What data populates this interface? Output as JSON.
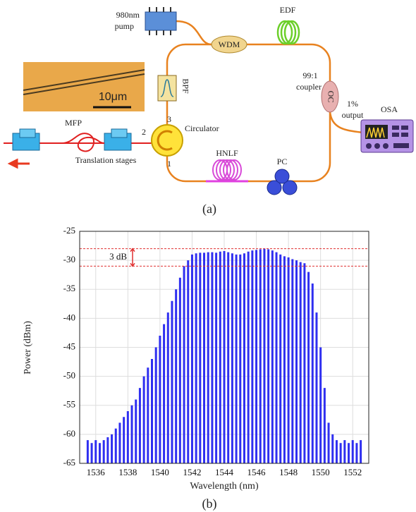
{
  "diagram": {
    "pump_label_1": "980nm",
    "pump_label_2": "pump",
    "wdm": "WDM",
    "edf": "EDF",
    "coupler_ratio": "99:1",
    "coupler_label": "coupler",
    "oc": "OC",
    "output_percent": "1%",
    "output_label": "output",
    "osa": "OSA",
    "bpf": "BPF",
    "port_3": "3",
    "circulator": "Circulator",
    "port_2": "2",
    "port_1": "1",
    "mfp": "MFP",
    "stages": "Translation stages",
    "hnlf": "HNLF",
    "pc": "PC",
    "scale_bar": "10μm",
    "panel_a": "(a)",
    "panel_b": "(b)"
  },
  "chart_data": {
    "type": "comb",
    "x_label": "Wavelength (nm)",
    "y_label": "Power (dBm)",
    "xlim": [
      1535,
      1553
    ],
    "xticks": [
      1536,
      1538,
      1540,
      1542,
      1544,
      1546,
      1548,
      1550,
      1552
    ],
    "ylim": [
      -65,
      -25
    ],
    "yticks": [
      -25,
      -30,
      -35,
      -40,
      -45,
      -50,
      -55,
      -60,
      -65
    ],
    "grid": true,
    "series": [
      {
        "color": "#2f2ff0",
        "x": [
          1535.5,
          1535.75,
          1536,
          1536.25,
          1536.5,
          1536.75,
          1537,
          1537.25,
          1537.5,
          1537.75,
          1538,
          1538.25,
          1538.5,
          1538.75,
          1539,
          1539.25,
          1539.5,
          1539.75,
          1540,
          1540.25,
          1540.5,
          1540.75,
          1541,
          1541.25,
          1541.5,
          1541.75,
          1542,
          1542.25,
          1542.5,
          1542.75,
          1543,
          1543.25,
          1543.5,
          1543.75,
          1544,
          1544.25,
          1544.5,
          1544.75,
          1545,
          1545.25,
          1545.5,
          1545.75,
          1546,
          1546.25,
          1546.5,
          1546.75,
          1547,
          1547.25,
          1547.5,
          1547.75,
          1548,
          1548.25,
          1548.5,
          1548.75,
          1549,
          1549.25,
          1549.5,
          1549.75,
          1550,
          1550.25,
          1550.5,
          1550.75,
          1551,
          1551.25,
          1551.5,
          1551.75,
          1552,
          1552.25,
          1552.5
        ],
        "values": [
          -61,
          -61.5,
          -61,
          -61.5,
          -61,
          -60.5,
          -60,
          -59,
          -58,
          -57,
          -56,
          -55,
          -54,
          -52,
          -50,
          -48.5,
          -47,
          -45,
          -43,
          -41,
          -39,
          -37,
          -35,
          -33,
          -31,
          -30,
          -29,
          -28.8,
          -28.7,
          -28.7,
          -28.6,
          -28.6,
          -28.7,
          -28.5,
          -28.4,
          -28.6,
          -28.8,
          -29,
          -29,
          -28.8,
          -28.5,
          -28.3,
          -28.2,
          -28.1,
          -28,
          -28.1,
          -28.3,
          -28.6,
          -29,
          -29.3,
          -29.5,
          -29.8,
          -30,
          -30.3,
          -30.5,
          -32,
          -34,
          -39,
          -45,
          -52,
          -58,
          -60,
          -61,
          -61.5,
          -61,
          -61.5,
          -61,
          -61.5,
          -61
        ]
      }
    ],
    "reference_lines": {
      "values": [
        -28,
        -31
      ],
      "color": "#e03030"
    },
    "annotation": "3 dB"
  }
}
